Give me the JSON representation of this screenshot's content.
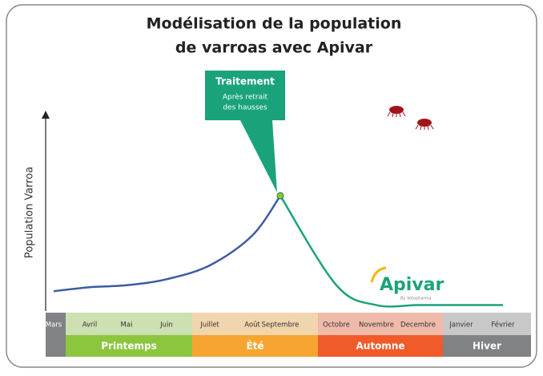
{
  "chart_data": {
    "type": "line",
    "title": [
      "Modélisation de la population",
      "de varroas avec Apivar"
    ],
    "y_label": "Population Varroa",
    "categories": [
      "Mars",
      "Avril",
      "Mai",
      "Juin",
      "Juillet",
      "Août",
      "Septembre",
      "Octobre",
      "Novembre",
      "Decembre",
      "Janvier",
      "Février"
    ],
    "series": [
      {
        "color": "#3b5ba5",
        "values": [
          10,
          12,
          13,
          16,
          23,
          38,
          58,
          null,
          null,
          null,
          null,
          null
        ]
      },
      {
        "color": "#1aa37a",
        "values": [
          null,
          null,
          null,
          null,
          null,
          null,
          58,
          13,
          3,
          3,
          3,
          3
        ]
      }
    ],
    "ylim": [
      0,
      100
    ],
    "seasons": [
      {
        "name": "Printemps",
        "color": "#8cc63f"
      },
      {
        "name": "Été",
        "color": "#f7a531"
      },
      {
        "name": "Automne",
        "color": "#f15a29"
      },
      {
        "name": "Hiver",
        "color": "#808285"
      }
    ],
    "annotation": {
      "title": "Traitement",
      "lines": [
        "Après retrait",
        "des hausses"
      ],
      "color": "#1aa37a"
    },
    "logo": {
      "name": "Apivar",
      "tagline": "By Vetopharma"
    }
  }
}
